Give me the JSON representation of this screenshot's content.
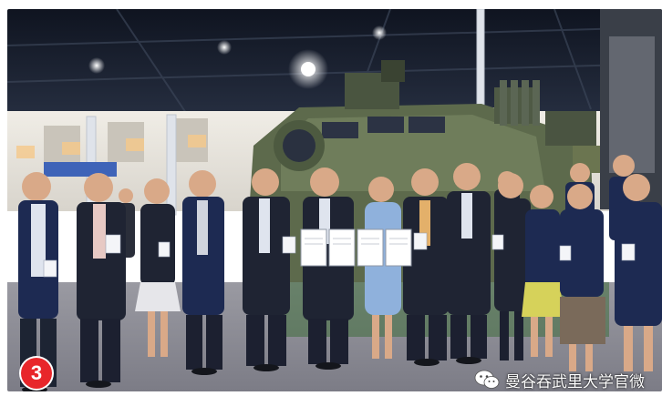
{
  "photo": {
    "subject": "group-photo-at-defense-exhibition",
    "colors": {
      "ceiling": "#1c2230",
      "hall_wall": "#e8e6e0",
      "floor": "#8e8e96",
      "vehicle": "#5d6a4c",
      "suit": "#1f2433",
      "blue_suit": "#1d2a52",
      "dress_blue": "#8fb1dc",
      "skirt_yellow": "#d6d25a",
      "skin": "#d9a988"
    }
  },
  "badge": {
    "number": "3",
    "color": "#e8262a"
  },
  "watermark": {
    "icon": "wechat-icon",
    "text": "曼谷吞武里大学官微"
  }
}
